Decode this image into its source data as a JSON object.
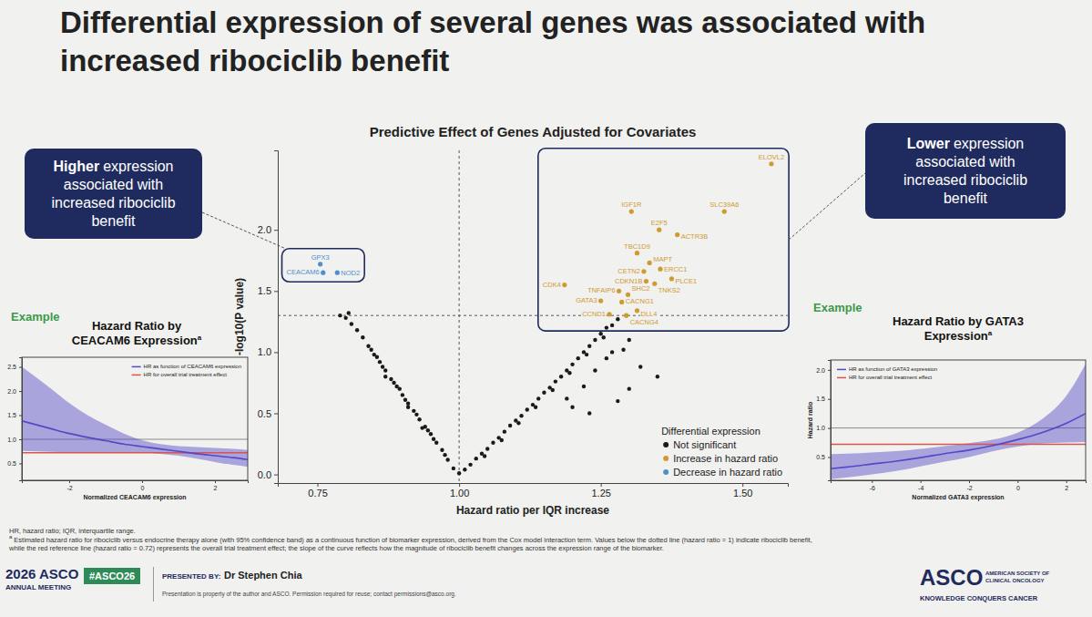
{
  "title": "Differential expression of several genes was associated with increased ribociclib benefit",
  "callouts": [
    {
      "emphasis": "Higher",
      "text": "expression associated with increased ribociclib benefit"
    },
    {
      "emphasis": "Lower",
      "text": "expression associated with increased ribociclib benefit"
    }
  ],
  "chart_data": [
    {
      "type": "scatter",
      "title": "Predictive Effect of Genes Adjusted for Covariates",
      "x_label": "Hazard ratio per IQR increase",
      "y_label": "-log10(P value)",
      "xlim": [
        0.68,
        1.58
      ],
      "ylim": [
        -0.07,
        2.65
      ],
      "xticks": [
        0.75,
        {
          "value": 1,
          "label": "1.00"
        },
        1.25,
        {
          "value": 1.5,
          "label": "1.50"
        }
      ],
      "yticks": [
        {
          "value": 0,
          "label": "0.0"
        },
        0.5,
        {
          "value": 1,
          "label": "1.0"
        },
        1.5,
        {
          "value": 2,
          "label": "2.0"
        }
      ],
      "x_threshold": 1,
      "y_threshold": 1.3,
      "legend": "lower right",
      "legend_title": "Differential expression",
      "series": [
        {
          "name": "Not significant",
          "color": "#1a1a1a",
          "x": [
            0.99,
            0.98,
            0.975,
            0.97,
            0.96,
            0.955,
            0.95,
            0.945,
            0.94,
            0.93,
            0.925,
            0.92,
            0.91,
            0.905,
            0.9,
            0.89,
            0.885,
            0.88,
            0.87,
            0.865,
            0.86,
            0.85,
            0.845,
            0.84,
            0.83,
            0.82,
            0.81,
            0.8,
            0.805,
            0.79,
            0.87,
            0.91,
            0.935,
            0.895,
            0.855,
            1.0,
            1.01,
            1.02,
            1.03,
            1.04,
            1.05,
            1.06,
            1.07,
            1.08,
            1.09,
            1.1,
            1.11,
            1.12,
            1.13,
            1.14,
            1.15,
            1.16,
            1.17,
            1.18,
            1.19,
            1.2,
            1.21,
            1.22,
            1.23,
            1.24,
            1.25,
            1.26,
            1.27,
            1.28,
            1.045,
            1.075,
            1.105,
            1.135,
            1.165,
            1.195,
            1.225,
            1.255,
            1.19,
            1.2,
            1.22,
            1.24,
            1.26,
            1.29,
            1.3,
            1.32,
            1.28,
            1.35,
            1.23,
            1.3,
            1.27
          ],
          "values": [
            0.05,
            0.12,
            0.16,
            0.2,
            0.26,
            0.29,
            0.33,
            0.36,
            0.39,
            0.45,
            0.49,
            0.52,
            0.58,
            0.61,
            0.65,
            0.72,
            0.75,
            0.78,
            0.85,
            0.88,
            0.92,
            0.98,
            1.02,
            1.05,
            1.12,
            1.18,
            1.23,
            1.28,
            1.32,
            1.3,
            0.8,
            0.55,
            0.38,
            0.7,
            0.96,
            0.01,
            0.04,
            0.08,
            0.13,
            0.17,
            0.21,
            0.26,
            0.3,
            0.35,
            0.4,
            0.44,
            0.48,
            0.53,
            0.57,
            0.62,
            0.67,
            0.71,
            0.76,
            0.8,
            0.85,
            0.9,
            0.95,
            1.0,
            1.05,
            1.1,
            1.15,
            1.2,
            1.22,
            1.27,
            0.15,
            0.28,
            0.42,
            0.55,
            0.69,
            0.83,
            0.98,
            1.12,
            0.62,
            0.55,
            0.72,
            0.85,
            0.95,
            1.02,
            0.7,
            0.88,
            0.6,
            0.8,
            0.5,
            1.1,
            1.0
          ]
        },
        {
          "name": "Increase in hazard ratio",
          "color": "#cf9a32",
          "x": [
            1.551,
            1.468,
            1.304,
            1.353,
            1.385,
            1.314,
            1.336,
            1.326,
            1.355,
            1.375,
            1.33,
            1.345,
            1.186,
            1.282,
            1.298,
            1.25,
            1.287,
            1.314,
            1.265,
            1.295
          ],
          "values": [
            2.54,
            2.15,
            2.15,
            2.0,
            1.96,
            1.81,
            1.73,
            1.66,
            1.68,
            1.6,
            1.58,
            1.56,
            1.55,
            1.5,
            1.47,
            1.42,
            1.41,
            1.34,
            1.31,
            1.3
          ],
          "labels": [
            "ELOVL2",
            "SLC39A6",
            "IGF1R",
            "E2F5",
            "ACTR3B",
            "TBC1D9",
            "MAPT",
            "CETN2",
            "ERCC1",
            "PLCE1",
            "CDKN1B",
            "TNKS2",
            "CDK4",
            "TNFAIP6",
            "SHC2",
            "GATA3",
            "CACNG1",
            "DLL4",
            "CCND1",
            "CACNG4"
          ]
        },
        {
          "name": "Decrease in hazard ratio",
          "color": "#4f90cc",
          "x": [
            0.755,
            0.76,
            0.785
          ],
          "values": [
            1.72,
            1.65,
            1.65
          ],
          "labels": [
            "GPX3",
            "CEACAM6",
            "NOD2"
          ]
        }
      ]
    },
    {
      "type": "line",
      "example_label": "Example",
      "title": "Hazard Ratio by CEACAM6 Expression",
      "title_note": "a",
      "x_label": "Normalized CEACAM6 expression",
      "x": [
        -3.3,
        -2.5,
        -2,
        -1.5,
        -1,
        -0.5,
        0,
        0.5,
        1,
        1.5,
        2,
        2.5,
        2.9
      ],
      "xlim": [
        -3.3,
        2.9
      ],
      "ylim": [
        0.15,
        2.7
      ],
      "xticks": [
        -2,
        0,
        2
      ],
      "yticks": [
        0.5,
        {
          "value": 1,
          "label": "1.0"
        },
        1.5,
        {
          "value": 2,
          "label": "2.0"
        },
        2.5
      ],
      "null_line": 1,
      "legend": "upper right",
      "series": [
        {
          "name": "HR as function of CEACAM6 expression",
          "color": "#5548c8",
          "values": [
            1.38,
            1.22,
            1.12,
            1.04,
            0.97,
            0.9,
            0.85,
            0.8,
            0.75,
            0.7,
            0.66,
            0.62,
            0.58
          ],
          "ci_lower": [
            0.76,
            0.74,
            0.73,
            0.73,
            0.72,
            0.72,
            0.72,
            0.7,
            0.66,
            0.6,
            0.53,
            0.47,
            0.43
          ],
          "ci_upper": [
            2.5,
            2.05,
            1.75,
            1.5,
            1.3,
            1.12,
            0.98,
            0.9,
            0.86,
            0.84,
            0.82,
            0.8,
            0.78
          ]
        },
        {
          "name": "HR for overall trial treatment effect",
          "color": "#d9534f",
          "values": [
            0.72,
            0.72,
            0.72,
            0.72,
            0.72,
            0.72,
            0.72,
            0.72,
            0.72,
            0.72,
            0.72,
            0.72,
            0.72
          ]
        }
      ]
    },
    {
      "type": "line",
      "example_label": "Example",
      "title": "Hazard Ratio by GATA3 Expression",
      "title_note": "a",
      "x_label": "Normalized GATA3 expression",
      "y_label": "Hazard ratio",
      "x": [
        -7.7,
        -7,
        -6,
        -5,
        -4,
        -3,
        -2,
        -1,
        0,
        1,
        2,
        2.8
      ],
      "xlim": [
        -7.7,
        2.8
      ],
      "ylim": [
        0.1,
        2.17
      ],
      "xticks": [
        -6,
        -4,
        -2,
        0,
        2
      ],
      "yticks": [
        0.5,
        {
          "value": 1,
          "label": "1.0"
        },
        1.5,
        {
          "value": 2,
          "label": "2.0"
        }
      ],
      "null_line": 1,
      "legend": "upper left",
      "series": [
        {
          "name": "HR as function of GATA3 expression",
          "color": "#5548c8",
          "values": [
            0.3,
            0.33,
            0.38,
            0.43,
            0.49,
            0.56,
            0.62,
            0.7,
            0.8,
            0.92,
            1.08,
            1.25
          ],
          "ci_lower": [
            0.12,
            0.15,
            0.2,
            0.26,
            0.34,
            0.42,
            0.5,
            0.6,
            0.68,
            0.73,
            0.75,
            0.76
          ],
          "ci_upper": [
            0.55,
            0.56,
            0.58,
            0.6,
            0.64,
            0.69,
            0.74,
            0.8,
            0.92,
            1.15,
            1.55,
            2.1
          ]
        },
        {
          "name": "HR for overall trial treatment effect",
          "color": "#d9534f",
          "values": [
            0.72,
            0.72,
            0.72,
            0.72,
            0.72,
            0.72,
            0.72,
            0.72,
            0.72,
            0.72,
            0.72,
            0.72
          ]
        }
      ]
    }
  ],
  "footnotes": {
    "abbreviations": "HR, hazard ratio; IQR, interquartile range.",
    "marker": "a",
    "text": "Estimated hazard ratio for ribociclib versus endocrine therapy alone (with 95% confidence band) as a continuous function of biomarker expression, derived from the Cox model interaction term. Values below the dotted line (hazard ratio = 1) indicate ribociclib benefit, while the red reference line (hazard ratio = 0.72) represents the overall trial treatment effect; the slope of the curve reflects how the magnitude of ribociclib benefit changes across the expression range of the biomarker."
  },
  "footer": {
    "meeting_year": "2026 ASCO",
    "meeting": "ANNUAL MEETING",
    "hashtag": "#ASCO26",
    "presented_by_label": "PRESENTED BY:",
    "presenter": "Dr Stephen Chia",
    "rights": "Presentation is property of the author and ASCO. Permission required for reuse; contact permissions@asco.org.",
    "org": "ASCO",
    "org_name": "AMERICAN SOCIETY OF CLINICAL ONCOLOGY",
    "tagline": "KNOWLEDGE CONQUERS CANCER"
  }
}
